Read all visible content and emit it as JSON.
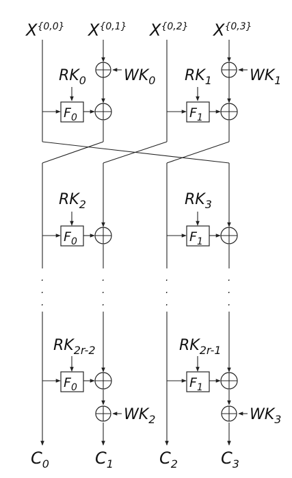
{
  "diagram": {
    "type": "generalized-feistel-network",
    "inputs": [
      {
        "base": "X",
        "sup": "{0,0}"
      },
      {
        "base": "X",
        "sup": "{0,1}"
      },
      {
        "base": "X",
        "sup": "{0,2}"
      },
      {
        "base": "X",
        "sup": "{0,3}"
      }
    ],
    "round1": {
      "rk_left": {
        "base": "RK",
        "sub": "0"
      },
      "rk_right": {
        "base": "RK",
        "sub": "1"
      },
      "wk_left": {
        "base": "WK",
        "sub": "0"
      },
      "wk_right": {
        "base": "WK",
        "sub": "1"
      },
      "f_left": {
        "base": "F",
        "sub": "0"
      },
      "f_right": {
        "base": "F",
        "sub": "1"
      }
    },
    "round2": {
      "rk_left": {
        "base": "RK",
        "sub": "2"
      },
      "rk_right": {
        "base": "RK",
        "sub": "3"
      },
      "f_left": {
        "base": "F",
        "sub": "0"
      },
      "f_right": {
        "base": "F",
        "sub": "1"
      }
    },
    "ellipsis": ".",
    "last_round": {
      "rk_left": {
        "base": "RK",
        "sub": "2r-2"
      },
      "rk_right": {
        "base": "RK",
        "sub": "2r-1"
      },
      "f_left": {
        "base": "F",
        "sub": "0"
      },
      "f_right": {
        "base": "F",
        "sub": "1"
      },
      "wk_left": {
        "base": "WK",
        "sub": "2"
      },
      "wk_right": {
        "base": "WK",
        "sub": "3"
      }
    },
    "outputs": [
      {
        "base": "C",
        "sub": "0"
      },
      {
        "base": "C",
        "sub": "1"
      },
      {
        "base": "C",
        "sub": "2"
      },
      {
        "base": "C",
        "sub": "3"
      }
    ]
  }
}
